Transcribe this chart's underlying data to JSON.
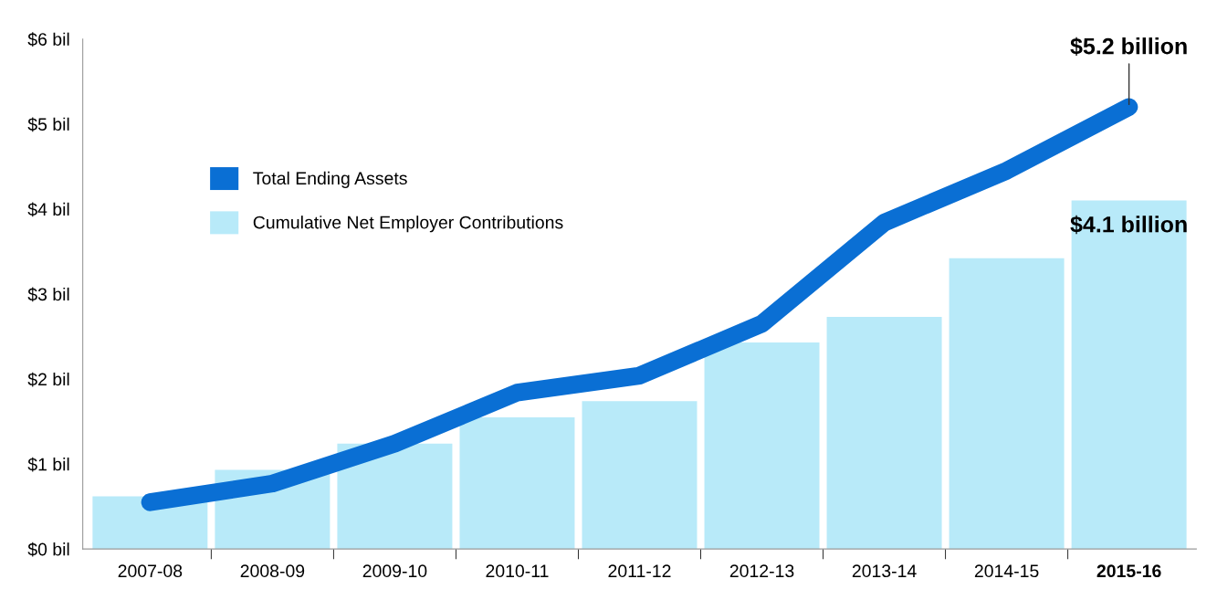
{
  "chart_data": {
    "type": "bar",
    "categories": [
      "2007-08",
      "2008-09",
      "2009-10",
      "2010-11",
      "2011-12",
      "2012-13",
      "2013-14",
      "2014-15",
      "2015-16"
    ],
    "series": [
      {
        "name": "Total Ending Assets",
        "type": "line",
        "color": "#0a6fd4",
        "values": [
          0.55,
          0.77,
          1.24,
          1.84,
          2.04,
          2.65,
          3.84,
          4.45,
          5.2
        ]
      },
      {
        "name": "Cumulative Net Employer Contributions",
        "color": "#b8eaf9",
        "values": [
          0.62,
          0.93,
          1.24,
          1.55,
          1.74,
          2.43,
          2.73,
          3.42,
          4.1
        ]
      }
    ],
    "ylim": [
      0,
      6
    ],
    "yticks": [
      {
        "value": 0,
        "label": "$0 bil"
      },
      {
        "value": 1,
        "label": "$1 bil"
      },
      {
        "value": 2,
        "label": "$2 bil"
      },
      {
        "value": 3,
        "label": "$3 bil"
      },
      {
        "value": 4,
        "label": "$4 bil"
      },
      {
        "value": 5,
        "label": "$5 bil"
      },
      {
        "value": 6,
        "label": "$6 bil"
      }
    ],
    "annotations": [
      {
        "text": "$5.2 billion",
        "x": "2015-16",
        "y": 5.2
      },
      {
        "text": "$4.1 billion",
        "x": "2015-16",
        "y": 4.1
      }
    ],
    "legend": "top left",
    "grid": false
  }
}
